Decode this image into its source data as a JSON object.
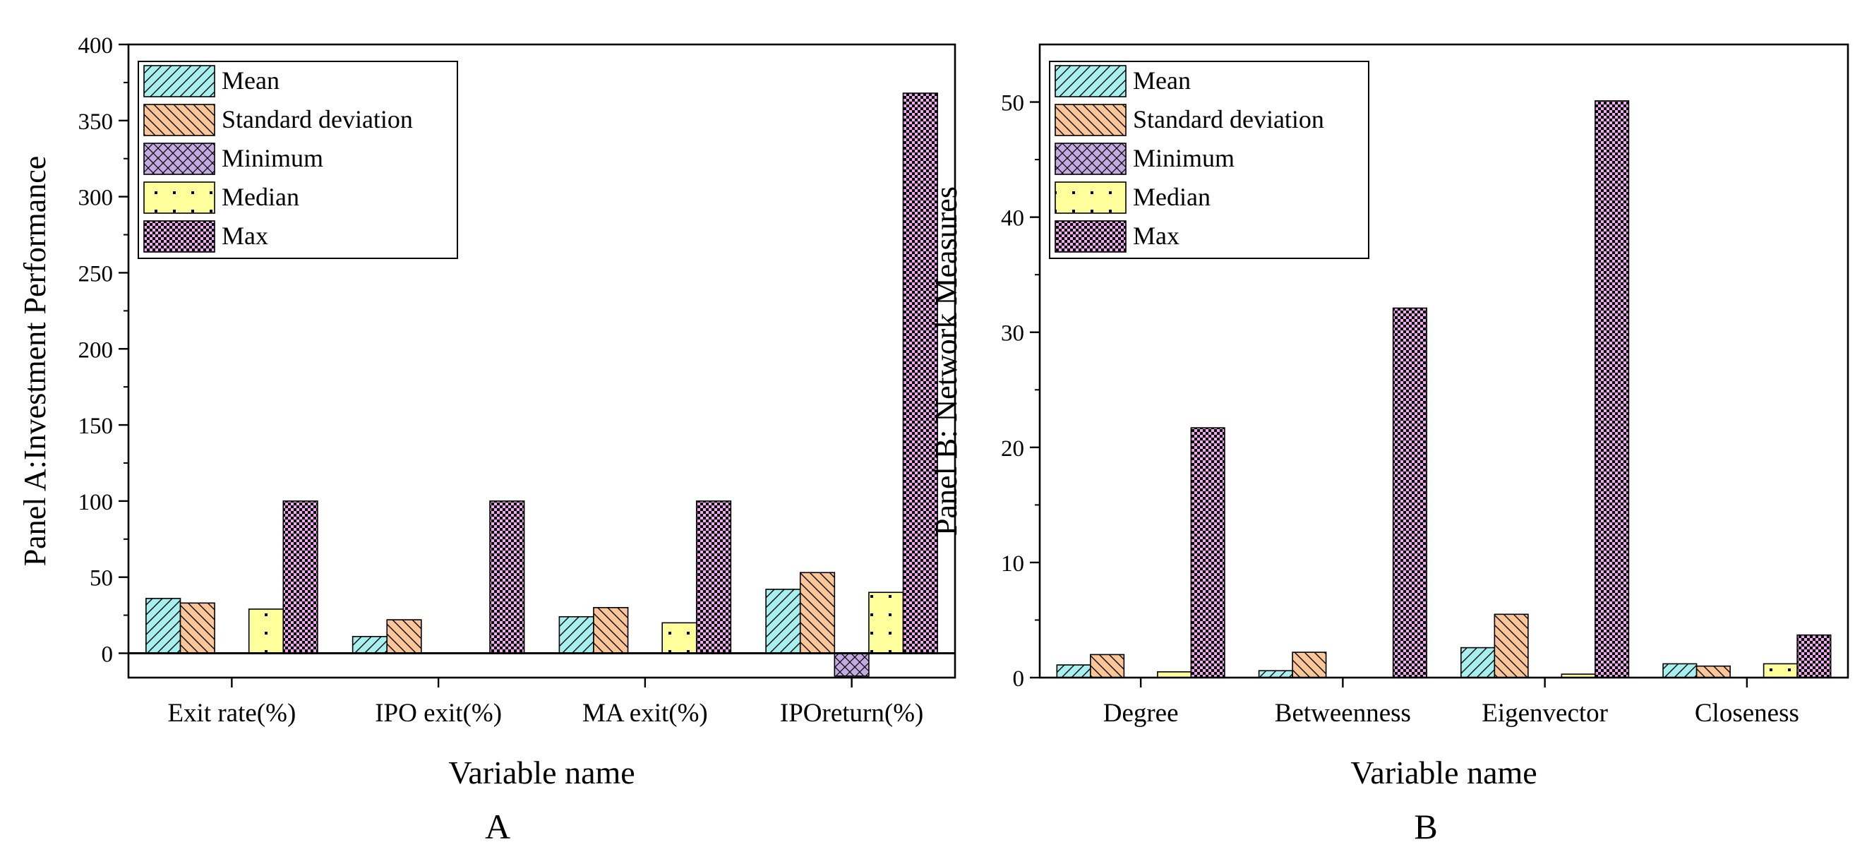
{
  "chart_data": [
    {
      "type": "bar",
      "panel_label": "A",
      "title": "",
      "xlabel": "Variable name",
      "ylabel": "Panel A:Investment Performance",
      "ylim": [
        -16,
        400
      ],
      "yticks": [
        0,
        50,
        100,
        150,
        200,
        250,
        300,
        350,
        400
      ],
      "categories": [
        "Exit rate(%)",
        "IPO exit(%)",
        "MA exit(%)",
        "IPOreturn(%)"
      ],
      "series": [
        {
          "name": "Mean",
          "pattern": "hatch-fwd",
          "color": "#a6f0f0",
          "values": [
            36,
            11,
            24,
            42
          ]
        },
        {
          "name": "Standard deviation",
          "pattern": "hatch-back",
          "color": "#fcc696",
          "values": [
            33,
            22,
            30,
            53
          ]
        },
        {
          "name": "Minimum",
          "pattern": "cross",
          "color": "#c5a9e2",
          "values": [
            0,
            0,
            0,
            -15
          ]
        },
        {
          "name": "Median",
          "pattern": "dots",
          "color": "#ffff9c",
          "values": [
            29,
            0,
            20,
            40
          ]
        },
        {
          "name": "Max",
          "pattern": "checker",
          "color": "#f2a6f2",
          "values": [
            100,
            100,
            100,
            368
          ]
        }
      ],
      "legend": "top-left"
    },
    {
      "type": "bar",
      "panel_label": "B",
      "title": "",
      "xlabel": "Variable name",
      "ylabel": "Panel B: Network Measures",
      "ylim": [
        0,
        55
      ],
      "yticks": [
        0,
        10,
        20,
        30,
        40,
        50
      ],
      "categories": [
        "Degree",
        "Betweenness",
        "Eigenvector",
        "Closeness"
      ],
      "series": [
        {
          "name": "Mean",
          "pattern": "hatch-fwd",
          "color": "#a6f0f0",
          "values": [
            1.1,
            0.6,
            2.6,
            1.2
          ]
        },
        {
          "name": "Standard deviation",
          "pattern": "hatch-back",
          "color": "#fcc696",
          "values": [
            2.0,
            2.2,
            5.5,
            1.0
          ]
        },
        {
          "name": "Minimum",
          "pattern": "cross",
          "color": "#c5a9e2",
          "values": [
            0,
            0,
            0,
            0
          ]
        },
        {
          "name": "Median",
          "pattern": "dots",
          "color": "#ffff9c",
          "values": [
            0.5,
            0,
            0.3,
            1.2
          ]
        },
        {
          "name": "Max",
          "pattern": "checker",
          "color": "#f2a6f2",
          "values": [
            21.7,
            32.1,
            50.1,
            3.7
          ]
        }
      ],
      "legend": "top-left"
    }
  ]
}
